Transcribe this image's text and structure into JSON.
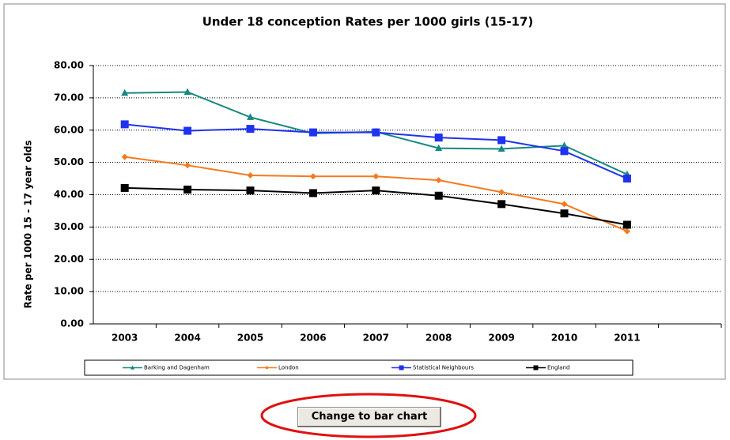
{
  "chart_data": {
    "type": "line",
    "title": "Under 18 conception Rates per 1000 girls (15-17)",
    "y_label": "Rate per 1000 15 - 17 year olds",
    "categories": [
      "2003",
      "2004",
      "2005",
      "2006",
      "2007",
      "2008",
      "2009",
      "2010",
      "2011",
      null
    ],
    "series": [
      {
        "name": "Barking and Dagenham",
        "color": "#17897f",
        "marker": "triangle",
        "values": [
          71.5,
          71.8,
          64.0,
          59.0,
          59.5,
          54.4,
          54.2,
          55.2,
          46.3,
          null
        ]
      },
      {
        "name": "London",
        "color": "#f47a20",
        "marker": "diamond",
        "values": [
          51.7,
          49.1,
          46.0,
          45.7,
          45.7,
          44.5,
          40.8,
          37.1,
          28.7,
          null
        ]
      },
      {
        "name": "Statistical Neighbours",
        "color": "#1e32f0",
        "marker": "square",
        "values": [
          61.8,
          59.8,
          60.4,
          59.3,
          59.3,
          57.7,
          56.9,
          53.5,
          45.0,
          null
        ]
      },
      {
        "name": "England",
        "color": "#000000",
        "marker": "square",
        "values": [
          42.1,
          41.6,
          41.3,
          40.5,
          41.3,
          39.7,
          37.1,
          34.2,
          30.7,
          null
        ]
      }
    ],
    "ylim": [
      0,
      80
    ],
    "yticks": [
      {
        "value": 0,
        "label": "0.00"
      },
      {
        "value": 10,
        "label": "10.00"
      },
      {
        "value": 20,
        "label": "20.00"
      },
      {
        "value": 30,
        "label": "30.00"
      },
      {
        "value": 40,
        "label": "40.00"
      },
      {
        "value": 50,
        "label": "50.00"
      },
      {
        "value": 60,
        "label": "60.00"
      },
      {
        "value": 70,
        "label": "70.00"
      },
      {
        "value": 80,
        "label": "80.00"
      }
    ],
    "grid": true,
    "legend": "bottom"
  },
  "button": {
    "label": "Change to bar chart"
  }
}
